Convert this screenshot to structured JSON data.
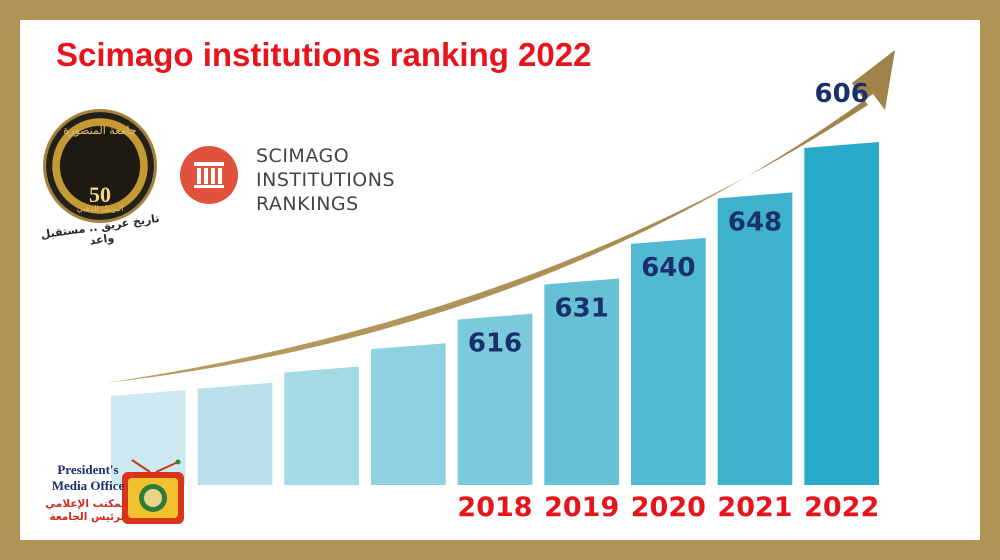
{
  "title": "Scimago institutions ranking 2022",
  "logos": {
    "university": {
      "arabic_name": "جامعة المنصورة",
      "number": "50",
      "subtitle_ar": "اليوبيل الذهبي",
      "tagline_ar": "تاريخ عريق .. مستقبل واعد"
    },
    "scimago": {
      "line1": "SCIMAGO",
      "line2": "INSTITUTIONS",
      "line3": "RANKINGS"
    },
    "media_office": {
      "line1": "President's",
      "line2": "Media Office",
      "line1_ar": "المكتب الإعلامي",
      "line2_ar": "لرئيس الجامعة"
    }
  },
  "colors": {
    "title": "#e8141c",
    "arrow": "#a88d55",
    "value_label": "#1b2f6b",
    "year_label": "#e8141c",
    "frame": "#b09556"
  },
  "chart_data": {
    "type": "bar",
    "title": "Scimago institutions ranking 2022",
    "xlabel": "",
    "ylabel": "",
    "categories": [
      "",
      "",
      "",
      "",
      "2018",
      "2019",
      "2020",
      "2021",
      "2022"
    ],
    "values": [
      null,
      null,
      null,
      null,
      616,
      631,
      640,
      648,
      606
    ],
    "value_labels": [
      "",
      "",
      "",
      "",
      "616",
      "631",
      "640",
      "648",
      "606"
    ],
    "trend": "rising arrow",
    "grid": false,
    "legend": "none"
  }
}
